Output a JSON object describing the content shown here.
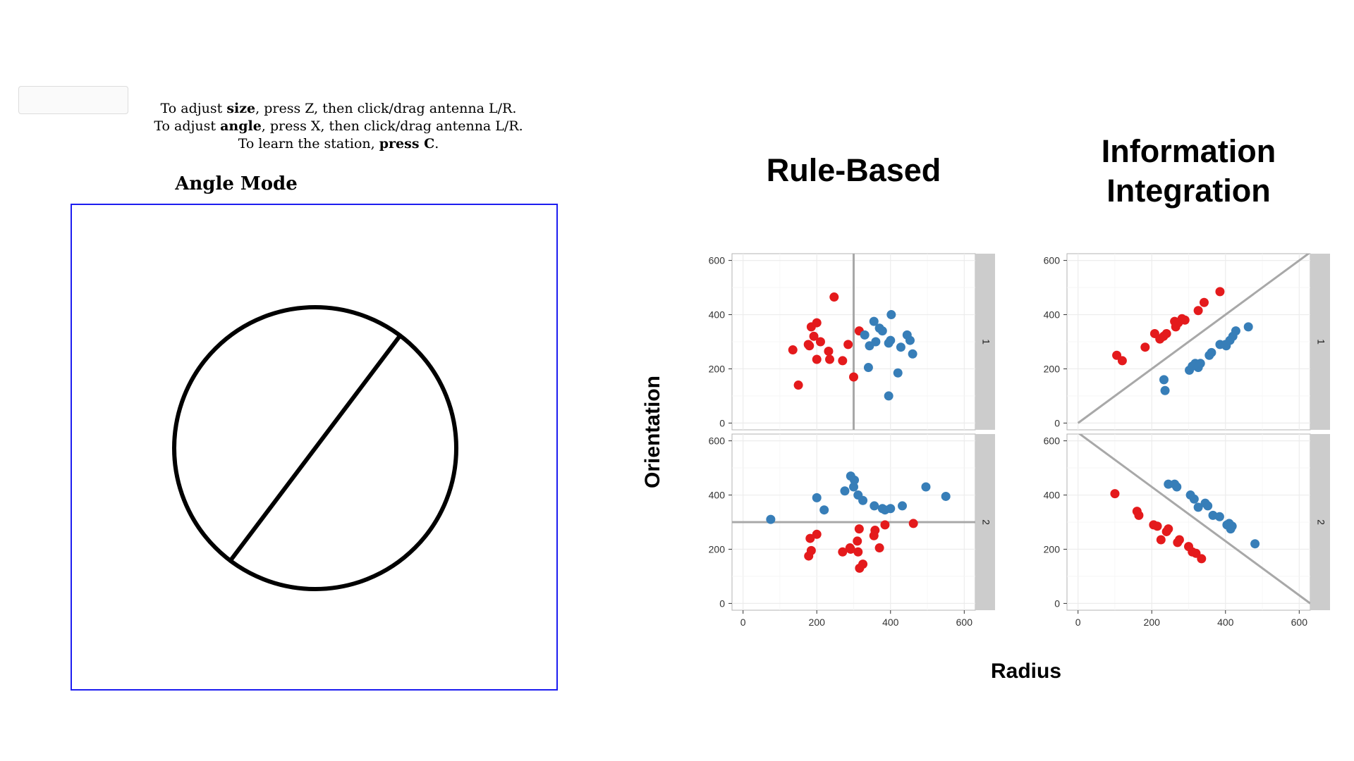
{
  "instructions": {
    "line1": {
      "pre": "To adjust ",
      "bold": "size",
      "post": ", press Z, then click/drag antenna L/R."
    },
    "line2": {
      "pre": "To adjust ",
      "bold": "angle",
      "post": ", press X, then click/drag antenna L/R."
    },
    "line3": {
      "pre": "To learn the station, ",
      "bold": "press C",
      "post": "."
    }
  },
  "mode_title": "Angle Mode",
  "stimulus": {
    "radius_fraction": 0.465,
    "line_angle_deg": 127
  },
  "chart_data": {
    "type": "scatter",
    "xlabel": "Radius",
    "ylabel": "Orientation",
    "xlim": [
      -30,
      630
    ],
    "ylim": [
      -25,
      625
    ],
    "x_ticks": [
      0,
      200,
      400,
      600
    ],
    "y_ticks": [
      0,
      200,
      400,
      600
    ],
    "grid": true,
    "colors": {
      "red": "#e41a1c",
      "blue": "#377eb8",
      "boundary": "#a8a8a8",
      "strip": "#cccccc",
      "panel_border": "#b3b3b3"
    },
    "columns": [
      {
        "title_lines": [
          "Rule-Based"
        ]
      },
      {
        "title_lines": [
          "Information",
          "Integration"
        ]
      }
    ],
    "panels": [
      {
        "col": 0,
        "row": 0,
        "strip": "1",
        "boundary": {
          "type": "vertical",
          "x": 300
        },
        "red": [
          [
            135,
            270
          ],
          [
            150,
            140
          ],
          [
            177,
            290
          ],
          [
            180,
            285
          ],
          [
            185,
            355
          ],
          [
            192,
            320
          ],
          [
            200,
            235
          ],
          [
            200,
            370
          ],
          [
            210,
            300
          ],
          [
            232,
            265
          ],
          [
            235,
            235
          ],
          [
            247,
            465
          ],
          [
            270,
            230
          ],
          [
            285,
            290
          ],
          [
            300,
            170
          ],
          [
            315,
            340
          ]
        ],
        "blue": [
          [
            330,
            325
          ],
          [
            340,
            205
          ],
          [
            343,
            285
          ],
          [
            355,
            375
          ],
          [
            360,
            300
          ],
          [
            370,
            350
          ],
          [
            378,
            340
          ],
          [
            395,
            100
          ],
          [
            395,
            295
          ],
          [
            400,
            305
          ],
          [
            402,
            400
          ],
          [
            420,
            185
          ],
          [
            428,
            280
          ],
          [
            445,
            325
          ],
          [
            453,
            305
          ],
          [
            460,
            255
          ]
        ]
      },
      {
        "col": 0,
        "row": 1,
        "strip": "2",
        "boundary": {
          "type": "horizontal",
          "y": 300
        },
        "red": [
          [
            178,
            175
          ],
          [
            182,
            240
          ],
          [
            185,
            195
          ],
          [
            200,
            255
          ],
          [
            270,
            190
          ],
          [
            290,
            205
          ],
          [
            292,
            200
          ],
          [
            310,
            230
          ],
          [
            312,
            190
          ],
          [
            315,
            275
          ],
          [
            316,
            130
          ],
          [
            325,
            145
          ],
          [
            355,
            250
          ],
          [
            358,
            270
          ],
          [
            370,
            205
          ],
          [
            385,
            290
          ],
          [
            462,
            295
          ]
        ],
        "blue": [
          [
            75,
            310
          ],
          [
            200,
            390
          ],
          [
            220,
            345
          ],
          [
            276,
            415
          ],
          [
            292,
            470
          ],
          [
            300,
            430
          ],
          [
            302,
            455
          ],
          [
            312,
            400
          ],
          [
            325,
            380
          ],
          [
            356,
            360
          ],
          [
            378,
            350
          ],
          [
            385,
            345
          ],
          [
            400,
            350
          ],
          [
            432,
            360
          ],
          [
            496,
            430
          ],
          [
            550,
            395
          ]
        ]
      },
      {
        "col": 1,
        "row": 0,
        "strip": "1",
        "boundary": {
          "type": "line",
          "from": [
            0,
            0
          ],
          "to": [
            630,
            630
          ]
        },
        "red": [
          [
            105,
            250
          ],
          [
            120,
            230
          ],
          [
            182,
            280
          ],
          [
            208,
            330
          ],
          [
            222,
            310
          ],
          [
            232,
            320
          ],
          [
            240,
            330
          ],
          [
            262,
            375
          ],
          [
            265,
            355
          ],
          [
            272,
            370
          ],
          [
            282,
            385
          ],
          [
            290,
            380
          ],
          [
            326,
            415
          ],
          [
            342,
            445
          ],
          [
            385,
            485
          ]
        ],
        "blue": [
          [
            233,
            160
          ],
          [
            236,
            120
          ],
          [
            302,
            195
          ],
          [
            310,
            210
          ],
          [
            318,
            220
          ],
          [
            326,
            205
          ],
          [
            332,
            220
          ],
          [
            356,
            250
          ],
          [
            362,
            260
          ],
          [
            385,
            290
          ],
          [
            400,
            290
          ],
          [
            402,
            285
          ],
          [
            412,
            305
          ],
          [
            420,
            320
          ],
          [
            428,
            340
          ],
          [
            462,
            355
          ]
        ]
      },
      {
        "col": 1,
        "row": 1,
        "strip": "2",
        "boundary": {
          "type": "line",
          "from": [
            0,
            630
          ],
          "to": [
            630,
            0
          ]
        },
        "red": [
          [
            100,
            405
          ],
          [
            160,
            340
          ],
          [
            165,
            325
          ],
          [
            205,
            290
          ],
          [
            215,
            285
          ],
          [
            225,
            235
          ],
          [
            240,
            265
          ],
          [
            245,
            275
          ],
          [
            270,
            225
          ],
          [
            275,
            235
          ],
          [
            300,
            210
          ],
          [
            310,
            190
          ],
          [
            320,
            185
          ],
          [
            335,
            165
          ]
        ],
        "blue": [
          [
            245,
            440
          ],
          [
            262,
            440
          ],
          [
            268,
            430
          ],
          [
            305,
            400
          ],
          [
            315,
            385
          ],
          [
            326,
            355
          ],
          [
            345,
            370
          ],
          [
            352,
            360
          ],
          [
            366,
            325
          ],
          [
            384,
            320
          ],
          [
            404,
            290
          ],
          [
            410,
            295
          ],
          [
            414,
            275
          ],
          [
            418,
            285
          ],
          [
            480,
            220
          ]
        ]
      }
    ]
  }
}
